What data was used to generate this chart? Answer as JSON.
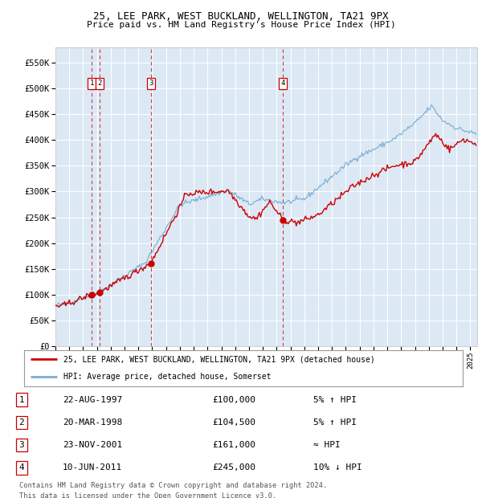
{
  "title1": "25, LEE PARK, WEST BUCKLAND, WELLINGTON, TA21 9PX",
  "title2": "Price paid vs. HM Land Registry's House Price Index (HPI)",
  "legend_red": "25, LEE PARK, WEST BUCKLAND, WELLINGTON, TA21 9PX (detached house)",
  "legend_blue": "HPI: Average price, detached house, Somerset",
  "footnote1": "Contains HM Land Registry data © Crown copyright and database right 2024.",
  "footnote2": "This data is licensed under the Open Government Licence v3.0.",
  "transactions": [
    {
      "id": 1,
      "date": "22-AUG-1997",
      "price": 100000,
      "note": "5% ↑ HPI",
      "year": 1997.64
    },
    {
      "id": 2,
      "date": "20-MAR-1998",
      "price": 104500,
      "note": "5% ↑ HPI",
      "year": 1998.22
    },
    {
      "id": 3,
      "date": "23-NOV-2001",
      "price": 161000,
      "note": "≈ HPI",
      "year": 2001.9
    },
    {
      "id": 4,
      "date": "10-JUN-2011",
      "price": 245000,
      "note": "10% ↓ HPI",
      "year": 2011.44
    }
  ],
  "ylim": [
    0,
    580000
  ],
  "xlim_start": 1995.0,
  "xlim_end": 2025.5,
  "background_color": "#dce9f5",
  "grid_color": "#ffffff",
  "red_line_color": "#cc0000",
  "blue_line_color": "#7aadd4",
  "marker_color": "#cc0000",
  "vline_color": "#cc0000",
  "outer_bg": "#ffffff",
  "box_color": "#cc0000",
  "fig_width": 6.0,
  "fig_height": 6.2,
  "dpi": 100
}
